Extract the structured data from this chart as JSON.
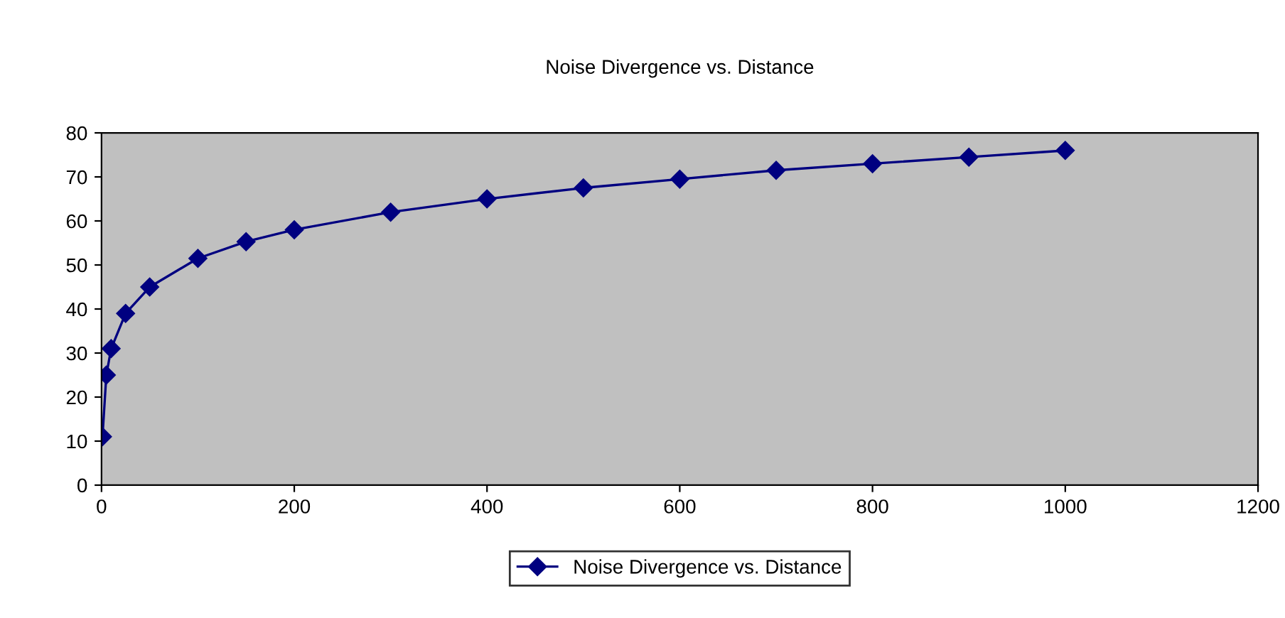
{
  "chart_data": {
    "type": "line",
    "title": "Noise Divergence vs. Distance",
    "x": [
      1,
      5,
      10,
      25,
      50,
      100,
      150,
      200,
      300,
      400,
      500,
      600,
      700,
      800,
      900,
      1000
    ],
    "series": [
      {
        "name": "Noise Divergence vs. Distance",
        "color": "#000080",
        "values": [
          11,
          25,
          31,
          39,
          45,
          51.5,
          55.3,
          58,
          62,
          65,
          67.5,
          69.5,
          71.5,
          73,
          74.5,
          76
        ]
      }
    ],
    "xlim": [
      0,
      1200
    ],
    "xticks": [
      0,
      200,
      400,
      600,
      800,
      1000,
      1200
    ],
    "ylim": [
      0,
      80
    ],
    "yticks": [
      0,
      10,
      20,
      30,
      40,
      50,
      60,
      70,
      80
    ],
    "grid": false,
    "legend": "bottom",
    "marker": "diamond",
    "line_style": "solid"
  }
}
